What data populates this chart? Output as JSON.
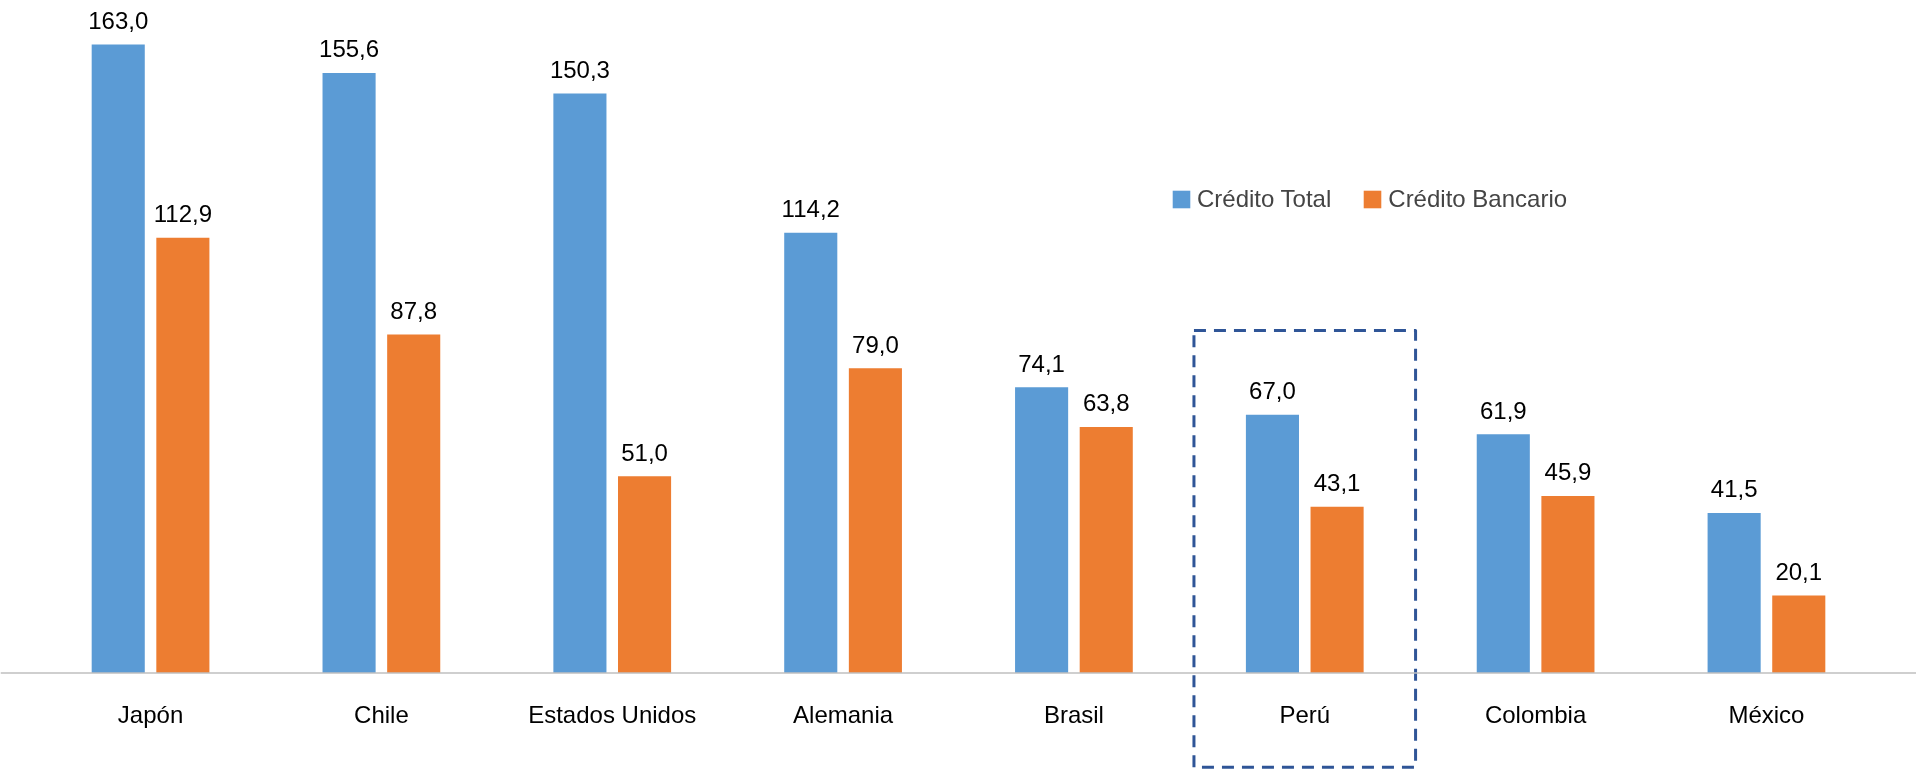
{
  "chart_data": {
    "type": "bar",
    "categories": [
      "Japón",
      "Chile",
      "Estados Unidos",
      "Alemania",
      "Brasil",
      "Perú",
      "Colombia",
      "México"
    ],
    "series": [
      {
        "name": "Crédito Total",
        "color": "#5b9bd5",
        "values": [
          163.0,
          155.6,
          150.3,
          114.2,
          74.1,
          67.0,
          61.9,
          41.5
        ],
        "value_labels": [
          "163,0",
          "155,6",
          "150,3",
          "114,2",
          "74,1",
          "67,0",
          "61,9",
          "41,5"
        ]
      },
      {
        "name": "Crédito Bancario",
        "color": "#ed7d31",
        "values": [
          112.9,
          87.8,
          51.0,
          79.0,
          63.8,
          43.1,
          45.9,
          20.1
        ],
        "value_labels": [
          "112,9",
          "87,8",
          "51,0",
          "79,0",
          "63,8",
          "43,1",
          "45,9",
          "20,1"
        ]
      }
    ],
    "legend": "top right",
    "grid": false
  }
}
